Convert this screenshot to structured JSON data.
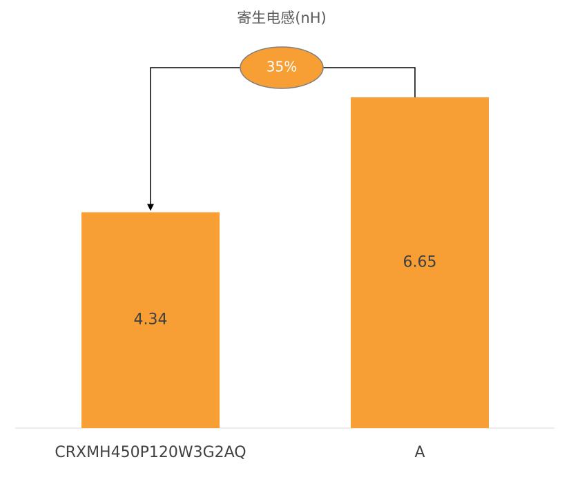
{
  "chart_data": {
    "type": "bar",
    "title": "寄生电感(nH)",
    "categories": [
      "CRXMH450P120W3G2AQ",
      "A"
    ],
    "values": [
      4.34,
      6.65
    ],
    "color": "#f79f35",
    "annotation": "35%"
  }
}
